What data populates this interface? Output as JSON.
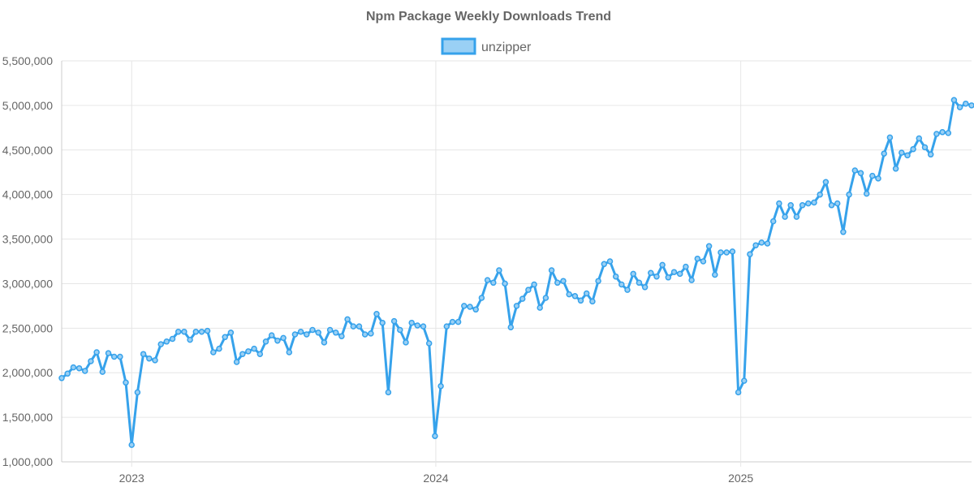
{
  "chart_data": {
    "type": "line",
    "title": "Npm Package Weekly Downloads Trend",
    "legend_position": "top-center",
    "grid": true,
    "colors": {
      "line": "#36a2eb",
      "fill": "#9ad0f5"
    },
    "x_start": "2022-10-09",
    "x_step_days": 7,
    "x_range": [
      "2022-10-09",
      "2025-10-05"
    ],
    "x_tick_labels": [
      "2023",
      "2024",
      "2025"
    ],
    "x_tick_dates": [
      "2023-01-01",
      "2024-01-01",
      "2025-01-01"
    ],
    "ylim": [
      1000000,
      5500000
    ],
    "y_tick_labels": [
      "1,000,000",
      "1,500,000",
      "2,000,000",
      "2,500,000",
      "3,000,000",
      "3,500,000",
      "4,000,000",
      "4,500,000",
      "5,000,000",
      "5,500,000"
    ],
    "series": [
      {
        "name": "unzipper",
        "values": [
          1940000,
          1990000,
          2060000,
          2050000,
          2020000,
          2130000,
          2230000,
          2010000,
          2220000,
          2180000,
          2180000,
          1890000,
          1190000,
          1780000,
          2210000,
          2160000,
          2140000,
          2320000,
          2350000,
          2380000,
          2460000,
          2460000,
          2370000,
          2460000,
          2460000,
          2470000,
          2230000,
          2270000,
          2400000,
          2450000,
          2120000,
          2210000,
          2240000,
          2270000,
          2210000,
          2350000,
          2420000,
          2360000,
          2390000,
          2230000,
          2430000,
          2460000,
          2430000,
          2480000,
          2450000,
          2340000,
          2480000,
          2450000,
          2410000,
          2600000,
          2520000,
          2520000,
          2430000,
          2440000,
          2660000,
          2560000,
          1780000,
          2580000,
          2480000,
          2340000,
          2560000,
          2530000,
          2520000,
          2330000,
          1290000,
          1850000,
          2520000,
          2570000,
          2570000,
          2750000,
          2740000,
          2710000,
          2840000,
          3040000,
          3010000,
          3150000,
          3000000,
          2510000,
          2750000,
          2830000,
          2930000,
          2990000,
          2730000,
          2840000,
          3150000,
          3010000,
          3030000,
          2880000,
          2860000,
          2810000,
          2890000,
          2800000,
          3030000,
          3220000,
          3250000,
          3080000,
          2990000,
          2930000,
          3110000,
          3010000,
          2960000,
          3120000,
          3080000,
          3210000,
          3070000,
          3130000,
          3110000,
          3190000,
          3040000,
          3280000,
          3250000,
          3420000,
          3100000,
          3350000,
          3350000,
          3360000,
          1780000,
          1910000,
          3330000,
          3430000,
          3460000,
          3450000,
          3700000,
          3900000,
          3750000,
          3880000,
          3750000,
          3880000,
          3900000,
          3910000,
          4000000,
          4140000,
          3880000,
          3900000,
          3580000,
          4000000,
          4270000,
          4240000,
          4010000,
          4210000,
          4180000,
          4460000,
          4640000,
          4290000,
          4470000,
          4440000,
          4510000,
          4630000,
          4530000,
          4450000,
          4680000,
          4700000,
          4690000,
          5060000,
          4980000,
          5020000,
          5000000
        ]
      }
    ]
  }
}
